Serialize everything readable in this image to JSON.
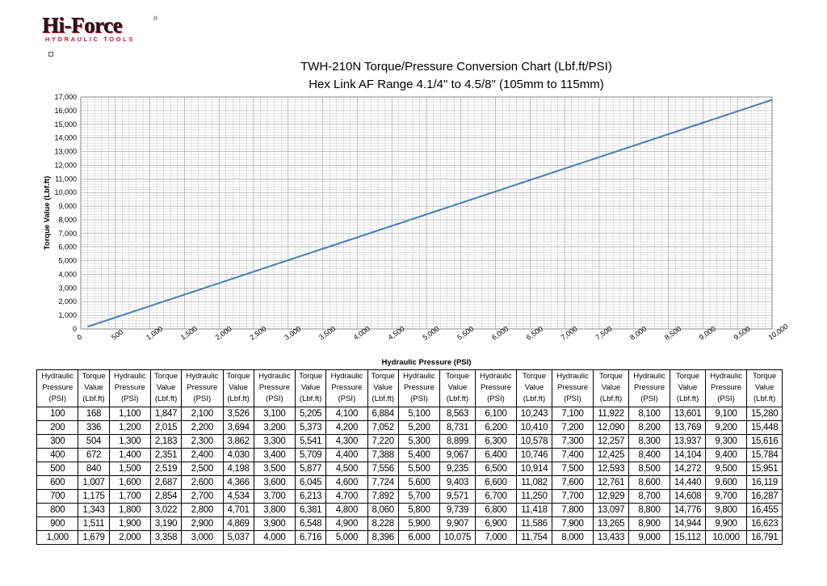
{
  "logo": {
    "brand": "Hi-Force",
    "sub": "HYDRAULIC TOOLS"
  },
  "chart_data": {
    "type": "line",
    "title": "TWH-210N Torque/Pressure Conversion Chart (Lbf.ft/PSI)",
    "subtitle": "Hex Link AF Range 4.1/4\" to 4.5/8\" (105mm to 115mm)",
    "xlabel": "Hydraulic Pressure (PSI)",
    "ylabel": "Torque Value (Lbf.ft)",
    "xlim": [
      0,
      10000
    ],
    "ylim": [
      0,
      17000
    ],
    "grid": true,
    "x_ticks": [
      "0",
      "500",
      "1,000",
      "1,500",
      "2,000",
      "2,500",
      "3,000",
      "3,500",
      "4,000",
      "4,500",
      "5,000",
      "5,500",
      "6,000",
      "6,500",
      "7,000",
      "7,500",
      "8,000",
      "8,500",
      "9,000",
      "9,500",
      "10,000"
    ],
    "y_ticks": [
      "0",
      "1,000",
      "2,000",
      "3,000",
      "4,000",
      "5,000",
      "6,000",
      "7,000",
      "8,000",
      "9,000",
      "10,000",
      "11,000",
      "12,000",
      "13,000",
      "14,000",
      "15,000",
      "16,000",
      "17,000"
    ],
    "series": [
      {
        "color": "#4a7db0",
        "x": [
          100,
          1000,
          2000,
          3000,
          4000,
          5000,
          6000,
          7000,
          8000,
          9000,
          10000
        ],
        "y": [
          168,
          1679,
          3358,
          5037,
          6716,
          8396,
          10075,
          11754,
          13433,
          15112,
          16791
        ]
      }
    ]
  },
  "table": {
    "header_groups": [
      [
        "Hydraulic",
        "Pressure",
        "(PSI)"
      ],
      [
        "Torque",
        "Value",
        "(Lbf.ft)"
      ]
    ],
    "rows": [
      [
        "100",
        "168",
        "1,100",
        "1,847",
        "2,100",
        "3,526",
        "3,100",
        "5,205",
        "4,100",
        "6,884",
        "5,100",
        "8,563",
        "6,100",
        "10,243",
        "7,100",
        "11,922",
        "8,100",
        "13,601",
        "9,100",
        "15,280"
      ],
      [
        "200",
        "336",
        "1,200",
        "2,015",
        "2,200",
        "3,694",
        "3,200",
        "5,373",
        "4,200",
        "7,052",
        "5,200",
        "8,731",
        "6,200",
        "10,410",
        "7,200",
        "12,090",
        "8,200",
        "13,769",
        "9,200",
        "15,448"
      ],
      [
        "300",
        "504",
        "1,300",
        "2,183",
        "2,300",
        "3,862",
        "3,300",
        "5,541",
        "4,300",
        "7,220",
        "5,300",
        "8,899",
        "6,300",
        "10,578",
        "7,300",
        "12,257",
        "8,300",
        "13,937",
        "9,300",
        "15,616"
      ],
      [
        "400",
        "672",
        "1,400",
        "2,351",
        "2,400",
        "4,030",
        "3,400",
        "5,709",
        "4,400",
        "7,388",
        "5,400",
        "9,067",
        "6,400",
        "10,746",
        "7,400",
        "12,425",
        "8,400",
        "14,104",
        "9,400",
        "15,784"
      ],
      [
        "500",
        "840",
        "1,500",
        "2,519",
        "2,500",
        "4,198",
        "3,500",
        "5,877",
        "4,500",
        "7,556",
        "5,500",
        "9,235",
        "6,500",
        "10,914",
        "7,500",
        "12,593",
        "8,500",
        "14,272",
        "9,500",
        "15,951"
      ],
      [
        "600",
        "1,007",
        "1,600",
        "2,687",
        "2,600",
        "4,366",
        "3,600",
        "6,045",
        "4,600",
        "7,724",
        "5,600",
        "9,403",
        "6,600",
        "11,082",
        "7,600",
        "12,761",
        "8,600",
        "14,440",
        "9,600",
        "16,119"
      ],
      [
        "700",
        "1,175",
        "1,700",
        "2,854",
        "2,700",
        "4,534",
        "3,700",
        "6,213",
        "4,700",
        "7,892",
        "5,700",
        "9,571",
        "6,700",
        "11,250",
        "7,700",
        "12,929",
        "8,700",
        "14,608",
        "9,700",
        "16,287"
      ],
      [
        "800",
        "1,343",
        "1,800",
        "3,022",
        "2,800",
        "4,701",
        "3,800",
        "6,381",
        "4,800",
        "8,060",
        "5,800",
        "9,739",
        "6,800",
        "11,418",
        "7,800",
        "13,097",
        "8,800",
        "14,776",
        "9,800",
        "16,455"
      ],
      [
        "900",
        "1,511",
        "1,900",
        "3,190",
        "2,900",
        "4,869",
        "3,900",
        "6,548",
        "4,900",
        "8,228",
        "5,900",
        "9,907",
        "6,900",
        "11,586",
        "7,900",
        "13,265",
        "8,900",
        "14,944",
        "9,900",
        "16,623"
      ],
      [
        "1,000",
        "1,679",
        "2,000",
        "3,358",
        "3,000",
        "5,037",
        "4,000",
        "6,716",
        "5,000",
        "8,396",
        "6,000",
        "10,075",
        "7,000",
        "11,754",
        "8,000",
        "13,433",
        "9,000",
        "15,112",
        "10,000",
        "16,791"
      ]
    ]
  }
}
